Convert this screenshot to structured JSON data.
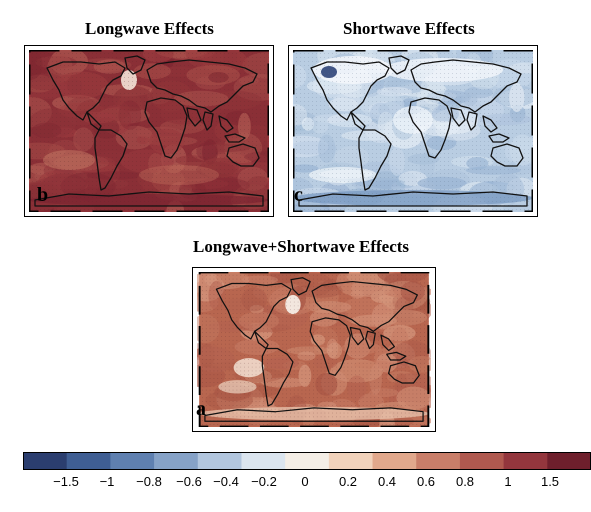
{
  "panels": {
    "longwave": {
      "title": "Longwave Effects",
      "letter": "b",
      "palette": "warm"
    },
    "shortwave": {
      "title": "Shortwave Effects",
      "letter": "c",
      "palette": "cool"
    },
    "combined": {
      "title": "Longwave+Shortwave Effects",
      "letter": "a",
      "palette": "mixed"
    }
  },
  "colorbar": {
    "tick_labels": [
      "−1.5",
      "−1",
      "−0.8",
      "−0.6",
      "−0.4",
      "−0.2",
      "0",
      "0.2",
      "0.4",
      "0.6",
      "0.8",
      "1",
      "1.5"
    ],
    "colors": [
      "#2b3e6f",
      "#3f5e93",
      "#5f80b0",
      "#86a2c7",
      "#b2c6de",
      "#dbe5ef",
      "#f4eee6",
      "#f1d2bb",
      "#e1a88c",
      "#c97e69",
      "#b0594f",
      "#93363d",
      "#6e1f2c"
    ]
  }
}
